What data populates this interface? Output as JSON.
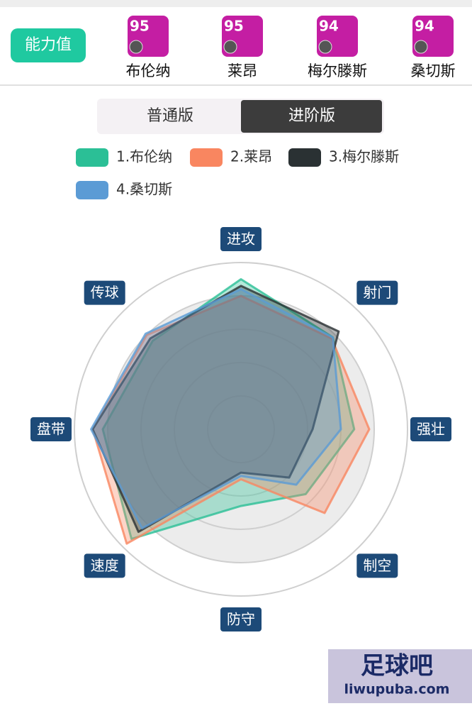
{
  "header": {
    "button": "能力值",
    "players": [
      {
        "rating": 95,
        "name": "布伦纳"
      },
      {
        "rating": 95,
        "name": "莱昂"
      },
      {
        "rating": 94,
        "name": "梅尔滕斯"
      },
      {
        "rating": 94,
        "name": "桑切斯"
      }
    ]
  },
  "tabs": [
    "普通版",
    "进阶版"
  ],
  "chart_data": {
    "type": "radar",
    "axes": [
      "进攻",
      "射门",
      "强壮",
      "制空",
      "防守",
      "速度",
      "盘带",
      "传球"
    ],
    "series": [
      {
        "name": "1.布伦纳",
        "color": "#2bbf96",
        "values": [
          90,
          78,
          68,
          55,
          46,
          93,
          83,
          75
        ]
      },
      {
        "name": "2.莱昂",
        "color": "#f98660",
        "values": [
          80,
          77,
          77,
          71,
          30,
          97,
          89,
          80
        ]
      },
      {
        "name": "3.梅尔滕斯",
        "color": "#2a3133",
        "values": [
          86,
          83,
          43,
          41,
          26,
          87,
          89,
          77
        ]
      },
      {
        "name": "4.桑切斯",
        "color": "#5b9bd5",
        "values": [
          84,
          78,
          60,
          47,
          28,
          84,
          90,
          81
        ]
      }
    ],
    "rlim": [
      0,
      100
    ],
    "rticks": [
      20,
      40,
      60,
      80,
      100
    ]
  },
  "watermark": {
    "title": "足球吧",
    "url": "liwupuba.com"
  }
}
